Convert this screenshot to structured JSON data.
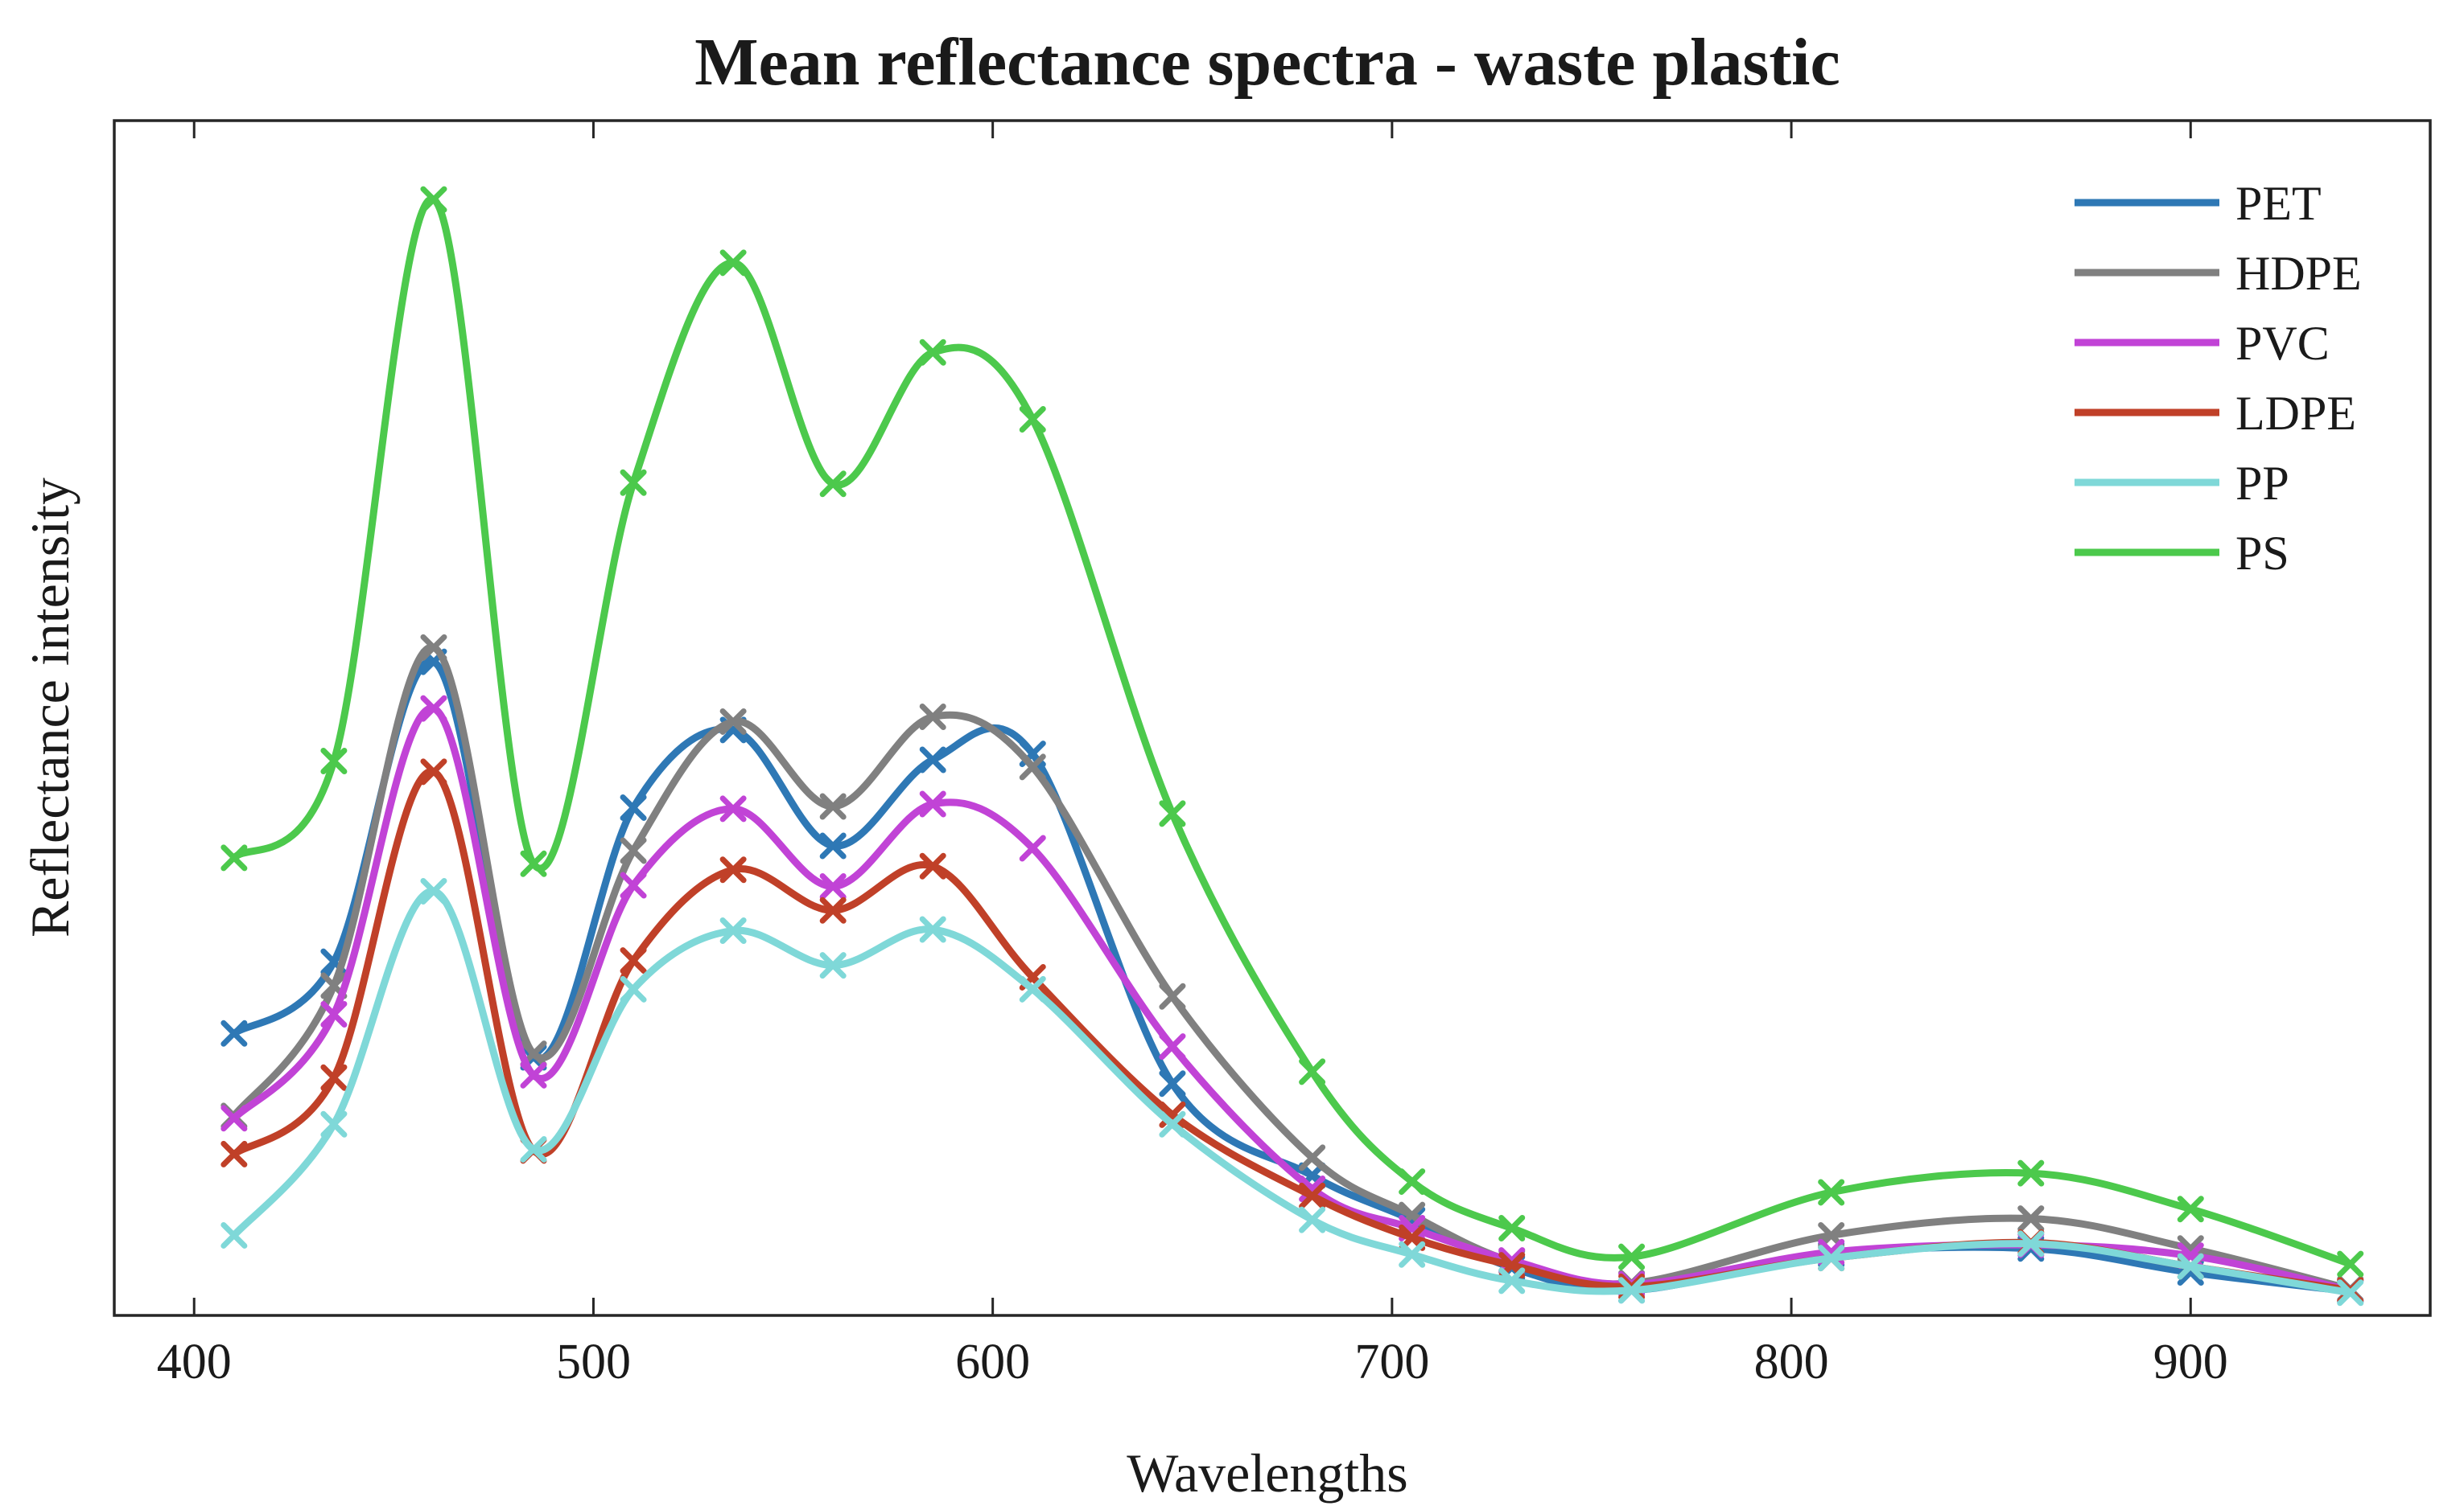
{
  "chart_data": {
    "type": "line",
    "title": "Mean reflectance spectra - waste plastic",
    "xlabel": "Wavelengths",
    "ylabel": "Reflectance intensity",
    "xlim": [
      380,
      960
    ],
    "ylim": [
      0,
      1.0
    ],
    "xticks": [
      400,
      500,
      600,
      700,
      800,
      900
    ],
    "y_tick_labels_shown": false,
    "grid": false,
    "legend": "top-right",
    "marker": "x",
    "x": [
      410,
      435,
      460,
      485,
      510,
      535,
      560,
      585,
      610,
      645,
      680,
      705,
      730,
      760,
      810,
      860,
      900,
      940
    ],
    "series": [
      {
        "name": "PET",
        "color": "#2e78b5",
        "values": [
          0.236,
          0.296,
          0.547,
          0.216,
          0.425,
          0.49,
          0.393,
          0.465,
          0.47,
          0.194,
          0.117,
          0.08,
          0.04,
          0.021,
          0.051,
          0.056,
          0.036,
          0.02
        ]
      },
      {
        "name": "HDPE",
        "color": "#808080",
        "values": [
          0.167,
          0.276,
          0.559,
          0.219,
          0.389,
          0.497,
          0.426,
          0.501,
          0.459,
          0.267,
          0.132,
          0.084,
          0.045,
          0.027,
          0.067,
          0.081,
          0.056,
          0.022
        ]
      },
      {
        "name": "PVC",
        "color": "#c143d6",
        "values": [
          0.165,
          0.252,
          0.508,
          0.201,
          0.36,
          0.424,
          0.359,
          0.428,
          0.391,
          0.225,
          0.106,
          0.073,
          0.046,
          0.026,
          0.053,
          0.059,
          0.05,
          0.021
        ]
      },
      {
        "name": "LDPE",
        "color": "#c04028",
        "values": [
          0.135,
          0.199,
          0.455,
          0.138,
          0.297,
          0.373,
          0.339,
          0.376,
          0.283,
          0.168,
          0.1,
          0.065,
          0.042,
          0.024,
          0.048,
          0.061,
          0.041,
          0.021
        ]
      },
      {
        "name": "PP",
        "color": "#7fd8d8",
        "values": [
          0.067,
          0.16,
          0.355,
          0.139,
          0.273,
          0.322,
          0.293,
          0.323,
          0.273,
          0.16,
          0.08,
          0.051,
          0.029,
          0.021,
          0.048,
          0.06,
          0.041,
          0.019
        ]
      },
      {
        "name": "PS",
        "color": "#4cc94c",
        "values": [
          0.383,
          0.464,
          0.934,
          0.378,
          0.697,
          0.881,
          0.696,
          0.806,
          0.75,
          0.42,
          0.204,
          0.112,
          0.073,
          0.049,
          0.103,
          0.119,
          0.089,
          0.043
        ]
      }
    ]
  }
}
